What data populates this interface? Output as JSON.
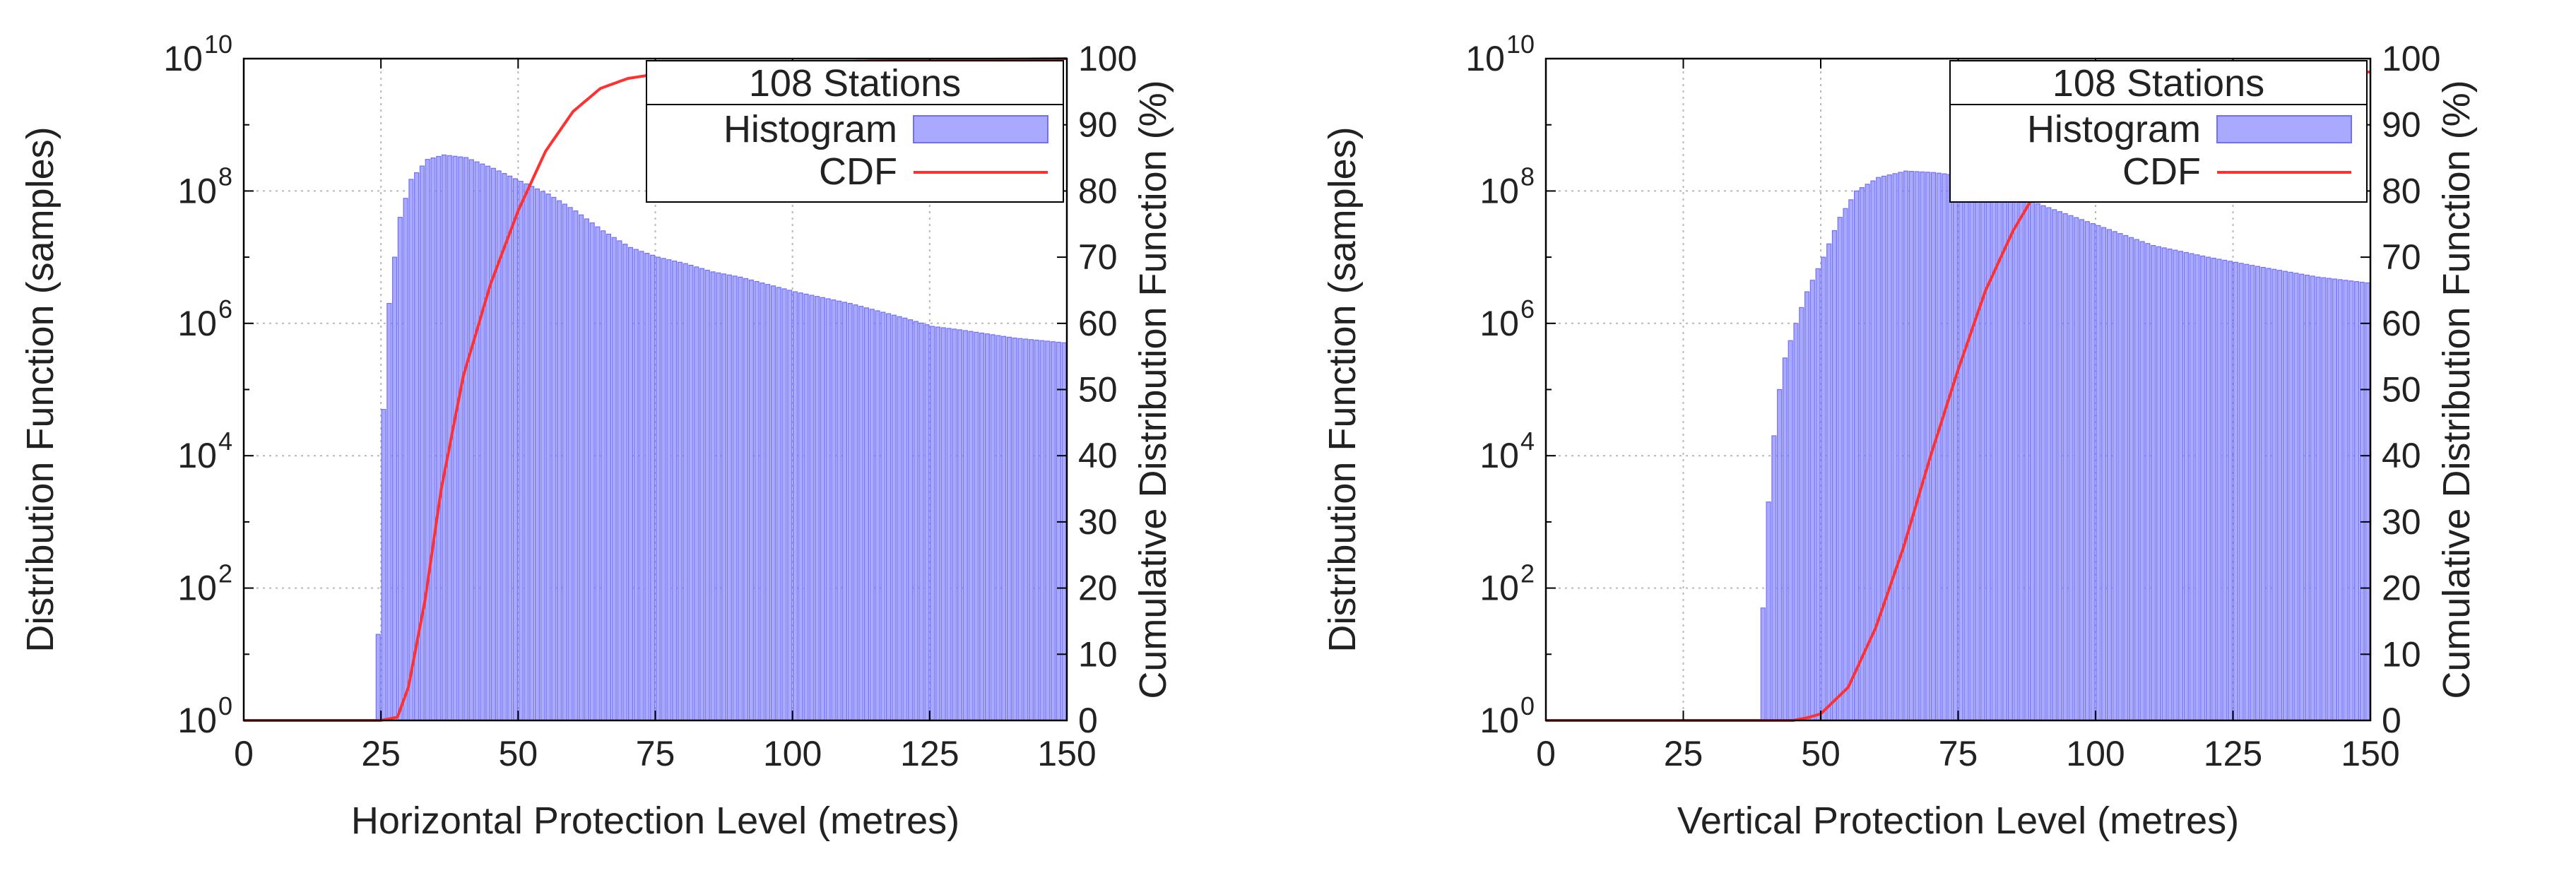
{
  "chart_data": [
    {
      "type": "bar",
      "xlabel": "Horizontal Protection Level (metres)",
      "ylabel": "Distribution Function (samples)",
      "y2label": "Cumulative Distribution Function (%)",
      "xlim": [
        0,
        150
      ],
      "ylim": [
        1,
        10000000000.0
      ],
      "yscale": "log",
      "y2lim": [
        0,
        100
      ],
      "xticks": [
        "0",
        "25",
        "50",
        "75",
        "100",
        "125",
        "150"
      ],
      "yticks": [
        [
          "10",
          "0"
        ],
        [
          "10",
          "2"
        ],
        [
          "10",
          "4"
        ],
        [
          "10",
          "6"
        ],
        [
          "10",
          "8"
        ],
        [
          "10",
          "10"
        ]
      ],
      "y2ticks": [
        "0",
        "10",
        "20",
        "30",
        "40",
        "50",
        "60",
        "70",
        "80",
        "90",
        "100"
      ],
      "grid": true,
      "legend": {
        "title": "108 Stations",
        "position": "top-right",
        "entries": [
          "Histogram",
          "CDF"
        ]
      },
      "series": [
        {
          "name": "Histogram",
          "kind": "histogram",
          "color": "#7f7fff",
          "bin_width": 1,
          "x": [
            24,
            25,
            26,
            27,
            28,
            30,
            33,
            36,
            40,
            45,
            50,
            55,
            60,
            65,
            70,
            75,
            80,
            85,
            90,
            100,
            110,
            120,
            125,
            130,
            140,
            150
          ],
          "values": [
            20,
            50000,
            2000000,
            10000000,
            40000000,
            150000000,
            300000000,
            350000000,
            320000000,
            220000000,
            140000000,
            90000000,
            50000000,
            25000000,
            14000000,
            10000000,
            8000000,
            6000000,
            5000000,
            3000000,
            2000000,
            1200000,
            900000,
            800000,
            600000,
            500000
          ]
        },
        {
          "name": "CDF",
          "kind": "line",
          "axis": "right",
          "color": "#ff3030",
          "x": [
            0,
            25,
            28,
            30,
            33,
            36,
            40,
            45,
            50,
            55,
            60,
            65,
            70,
            80,
            90,
            100,
            125,
            150
          ],
          "values": [
            0,
            0,
            0.5,
            5,
            18,
            35,
            52,
            66,
            77,
            86,
            92,
            95.5,
            97,
            98.3,
            99,
            99.4,
            99.8,
            100
          ]
        }
      ]
    },
    {
      "type": "bar",
      "xlabel": "Vertical Protection Level (metres)",
      "ylabel": "Distribution Function (samples)",
      "y2label": "Cumulative Distribution Function (%)",
      "xlim": [
        0,
        150
      ],
      "ylim": [
        1,
        10000000000.0
      ],
      "yscale": "log",
      "y2lim": [
        0,
        100
      ],
      "xticks": [
        "0",
        "25",
        "50",
        "75",
        "100",
        "125",
        "150"
      ],
      "yticks": [
        [
          "10",
          "0"
        ],
        [
          "10",
          "2"
        ],
        [
          "10",
          "4"
        ],
        [
          "10",
          "6"
        ],
        [
          "10",
          "8"
        ],
        [
          "10",
          "10"
        ]
      ],
      "y2ticks": [
        "0",
        "10",
        "20",
        "30",
        "40",
        "50",
        "60",
        "70",
        "80",
        "90",
        "100"
      ],
      "grid": true,
      "legend": {
        "title": "108 Stations",
        "position": "top-right",
        "entries": [
          "Histogram",
          "CDF"
        ]
      },
      "series": [
        {
          "name": "Histogram",
          "kind": "histogram",
          "color": "#7f7fff",
          "bin_width": 1,
          "x": [
            39,
            40,
            41,
            42,
            43,
            45,
            47,
            50,
            53,
            56,
            60,
            65,
            70,
            75,
            80,
            90,
            100,
            110,
            120,
            130,
            140,
            150
          ],
          "values": [
            50,
            2000,
            20000,
            100000,
            300000,
            1000000,
            3000000,
            10000000,
            40000000,
            100000000,
            160000000,
            200000000,
            190000000,
            170000000,
            120000000,
            60000000,
            30000000,
            15000000,
            10000000,
            7000000,
            5000000,
            4000000
          ]
        },
        {
          "name": "CDF",
          "kind": "line",
          "axis": "right",
          "color": "#ff3030",
          "x": [
            0,
            45,
            48,
            50,
            55,
            60,
            65,
            70,
            75,
            80,
            85,
            90,
            95,
            100,
            110,
            120,
            130,
            140,
            150
          ],
          "values": [
            0,
            0,
            0.5,
            1,
            5,
            14,
            26,
            40,
            53,
            65,
            74,
            81,
            86,
            89,
            93,
            95,
            96.5,
            97.5,
            98
          ]
        }
      ]
    }
  ]
}
